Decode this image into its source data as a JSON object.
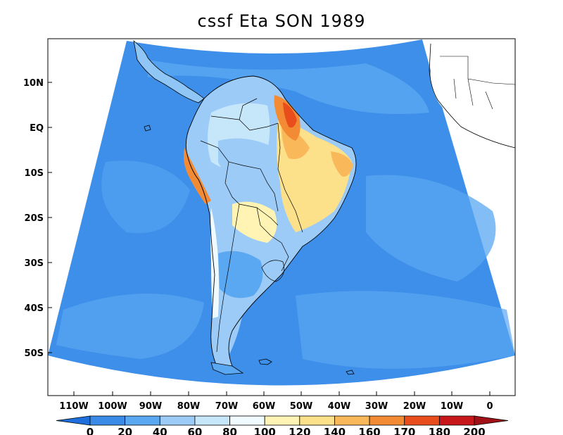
{
  "title": "cssf Eta SON 1989",
  "map": {
    "lat_labels": [
      "10N",
      "EQ",
      "10S",
      "20S",
      "30S",
      "40S",
      "50S"
    ],
    "lon_labels": [
      "110W",
      "100W",
      "90W",
      "80W",
      "70W",
      "60W",
      "50W",
      "40W",
      "30W",
      "20W",
      "10W",
      "0"
    ],
    "colors": {
      "ocean": "#3d8fea",
      "ocean_light": "#5aa7f2",
      "border": "#000000",
      "frame": "#000000"
    }
  },
  "colorbar": {
    "labels": [
      "0",
      "20",
      "40",
      "60",
      "80",
      "100",
      "120",
      "140",
      "160",
      "170",
      "180",
      "200"
    ],
    "colors": [
      "#1e6fdc",
      "#3a8be8",
      "#5aa7f2",
      "#9ccbf7",
      "#c6e6fa",
      "#f0fbff",
      "#fff4b4",
      "#fde08a",
      "#f9b95a",
      "#f38b34",
      "#ea4d1c",
      "#c7171b",
      "#a01016"
    ]
  }
}
